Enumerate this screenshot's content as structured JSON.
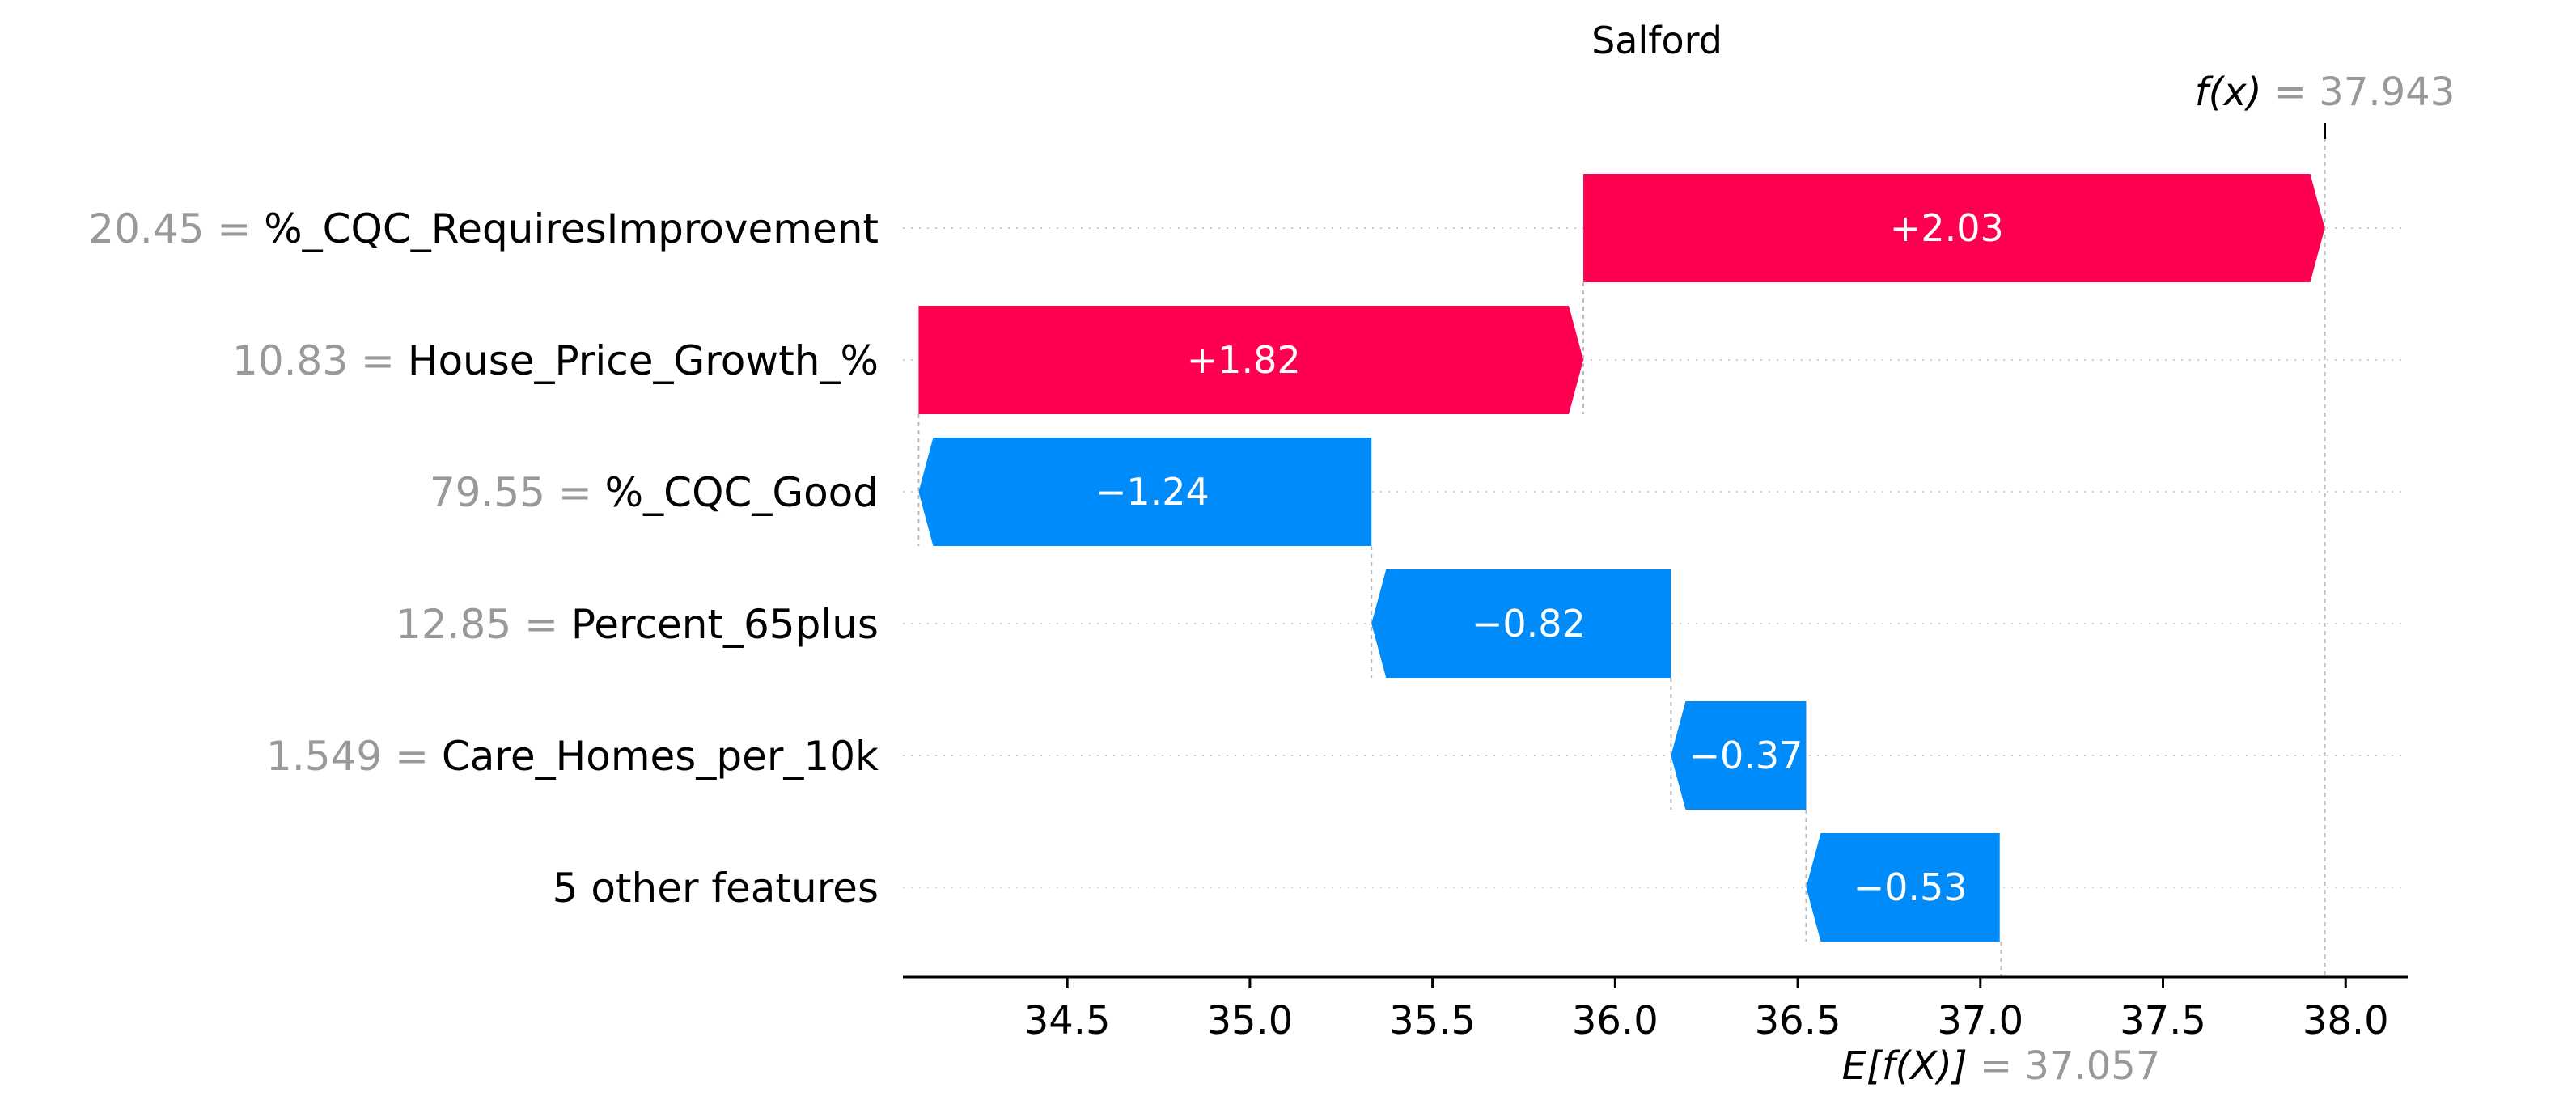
{
  "colors": {
    "positive": "#ff0051",
    "negative": "#008bfb",
    "value_text": "#999999",
    "grid": "#cccccc"
  },
  "chart_data": {
    "type": "waterfall",
    "title": "Salford",
    "xlim": [
      34.05,
      38.17
    ],
    "xticks": [
      34.5,
      35.0,
      35.5,
      36.0,
      36.5,
      37.0,
      37.5,
      38.0
    ],
    "xtick_labels": [
      "34.5",
      "35.0",
      "35.5",
      "36.0",
      "36.5",
      "37.0",
      "37.5",
      "38.0"
    ],
    "base_value": 37.057,
    "output_value": 37.943,
    "base_label_prefix": "E[f(X)]",
    "base_label_value": "= 37.057",
    "output_label_prefix": "f(x)",
    "output_label_value": "= 37.943",
    "features": [
      {
        "value": "20.45 =",
        "name": "%_CQC_RequiresImprovement",
        "contribution": 2.03,
        "label": "+2.03"
      },
      {
        "value": "10.83 =",
        "name": "House_Price_Growth_%",
        "contribution": 1.82,
        "label": "+1.82"
      },
      {
        "value": "79.55 =",
        "name": "%_CQC_Good",
        "contribution": -1.24,
        "label": "−1.24"
      },
      {
        "value": "12.85 =",
        "name": "Percent_65plus",
        "contribution": -0.82,
        "label": "−0.82"
      },
      {
        "value": "1.549 =",
        "name": "Care_Homes_per_10k",
        "contribution": -0.37,
        "label": "−0.37"
      },
      {
        "value": "",
        "name": "5 other features",
        "contribution": -0.53,
        "label": "−0.53"
      }
    ]
  }
}
